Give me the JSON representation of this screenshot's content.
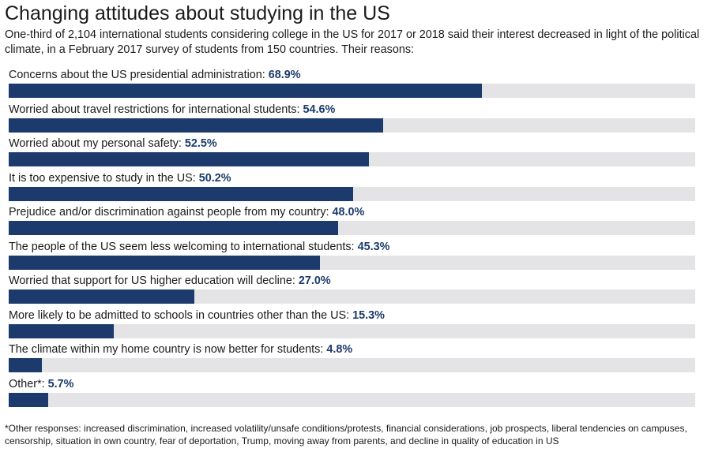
{
  "title": "Changing attitudes about studying in the US",
  "subtitle": "One-third of 2,104 international students considering college in the US for 2017 or 2018 said their interest decreased in light of the political climate, in a February 2017 survey of students from 150 countries. Their reasons:",
  "footnote": "*Other responses: increased discrimination, increased volatility/unsafe conditions/protests, financial considerations, job prospects, liberal tendencies on campuses, censorship, situation in own country, fear of deportation, Trump, moving away from parents, and decline in quality of education in US",
  "chart_data": {
    "type": "bar",
    "orientation": "horizontal",
    "xlim": [
      0,
      100
    ],
    "unit": "%",
    "colors": {
      "bar": "#1c3a6b",
      "track": "#e4e4e6",
      "value_text": "#1c3a6b"
    },
    "categories": [
      "Concerns about the US presidential administration:",
      "Worried about travel restrictions for international students:",
      "Worried about my personal safety:",
      "It is too expensive to study in the US:",
      "Prejudice and/or discrimination against people from my country:",
      "The people of the US seem less welcoming to international students:",
      "Worried that support for US higher education will decline:",
      "More likely to be admitted to schools in countries other than the US:",
      "The climate within my home country is now better for students:",
      "Other*:"
    ],
    "values": [
      68.9,
      54.6,
      52.5,
      50.2,
      48.0,
      45.3,
      27.0,
      15.3,
      4.8,
      5.7
    ],
    "value_labels": [
      "68.9%",
      "54.6%",
      "52.5%",
      "50.2%",
      "48.0%",
      "45.3%",
      "27.0%",
      "15.3%",
      "4.8%",
      "5.7%"
    ]
  }
}
